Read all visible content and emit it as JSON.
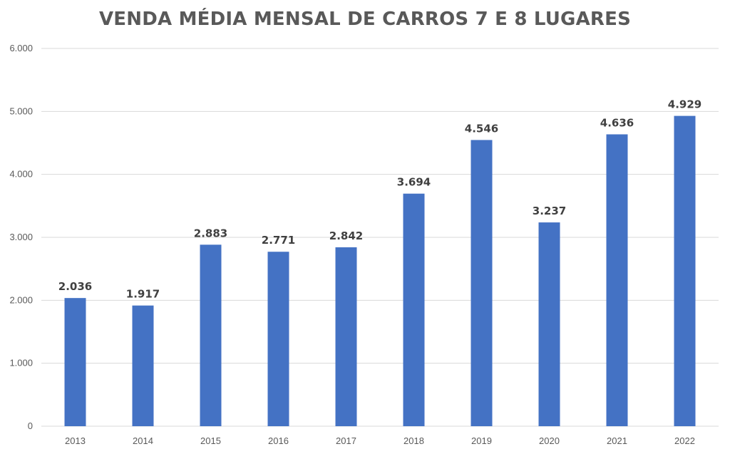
{
  "chart_data": {
    "type": "bar",
    "title": "VENDA MÉDIA MENSAL DE CARROS 7 E 8 LUGARES",
    "xlabel": "",
    "ylabel": "",
    "categories": [
      "2013",
      "2014",
      "2015",
      "2016",
      "2017",
      "2018",
      "2019",
      "2020",
      "2021",
      "2022"
    ],
    "values": [
      2036,
      1917,
      2883,
      2771,
      2842,
      3694,
      4546,
      3237,
      4636,
      4929
    ],
    "data_labels": [
      "2.036",
      "1.917",
      "2.883",
      "2.771",
      "2.842",
      "3.694",
      "4.546",
      "3.237",
      "4.636",
      "4.929"
    ],
    "ylim": [
      0,
      6000
    ],
    "yticks": [
      0,
      1000,
      2000,
      3000,
      4000,
      5000,
      6000
    ],
    "ytick_labels": [
      "0",
      "1.000",
      "2.000",
      "3.000",
      "4.000",
      "5.000",
      "6.000"
    ],
    "grid": true,
    "legend": "none",
    "bar_color": "#4472C4"
  }
}
